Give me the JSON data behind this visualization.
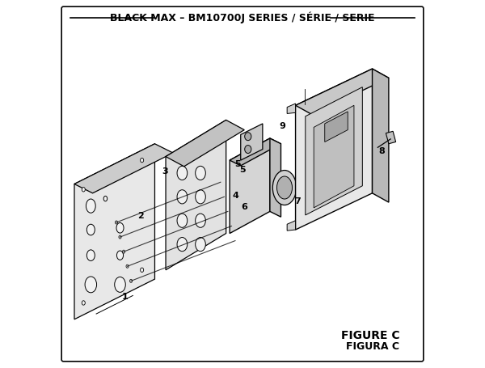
{
  "title": "BLACK MAX – BM10700J SERIES / SÉRIE / SERIE",
  "figure_label": "FIGURE C",
  "figura_label": "FIGURA C",
  "bg_color": "#ffffff",
  "border_color": "#000000",
  "line_color": "#000000",
  "part_color": "#d0d0d0",
  "part_dark": "#a0a0a0",
  "part_medium": "#b8b8b8",
  "title_fontsize": 9,
  "label_fontsize": 8,
  "figure_label_fontsize": 10
}
